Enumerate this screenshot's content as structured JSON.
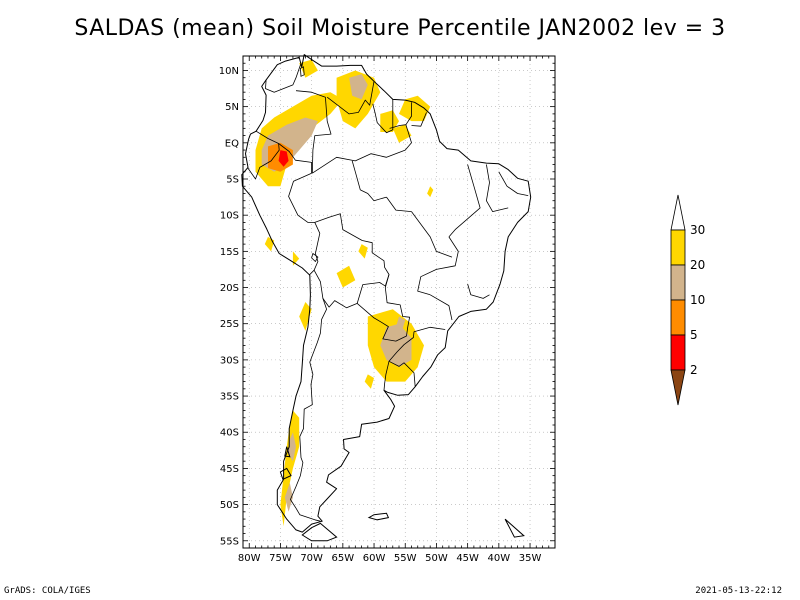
{
  "title": "SALDAS (mean) Soil Moisture Percentile JAN2002 lev = 3",
  "map": {
    "lat_range": [
      -56,
      12
    ],
    "lon_range": [
      -81,
      -31
    ],
    "lat_ticks": [
      {
        "lat": 10,
        "label": "10N"
      },
      {
        "lat": 5,
        "label": "5N"
      },
      {
        "lat": 0,
        "label": "EQ"
      },
      {
        "lat": -5,
        "label": "5S"
      },
      {
        "lat": -10,
        "label": "10S"
      },
      {
        "lat": -15,
        "label": "15S"
      },
      {
        "lat": -20,
        "label": "20S"
      },
      {
        "lat": -25,
        "label": "25S"
      },
      {
        "lat": -30,
        "label": "30S"
      },
      {
        "lat": -35,
        "label": "35S"
      },
      {
        "lat": -40,
        "label": "40S"
      },
      {
        "lat": -45,
        "label": "45S"
      },
      {
        "lat": -50,
        "label": "50S"
      },
      {
        "lat": -55,
        "label": "55S"
      }
    ],
    "lon_ticks": [
      {
        "lon": -80,
        "label": "80W"
      },
      {
        "lon": -75,
        "label": "75W"
      },
      {
        "lon": -70,
        "label": "70W"
      },
      {
        "lon": -65,
        "label": "65W"
      },
      {
        "lon": -60,
        "label": "60W"
      },
      {
        "lon": -55,
        "label": "55W"
      },
      {
        "lon": -50,
        "label": "50W"
      },
      {
        "lon": -45,
        "label": "45W"
      },
      {
        "lon": -40,
        "label": "40W"
      },
      {
        "lon": -35,
        "label": "35W"
      }
    ]
  },
  "legend": {
    "levels": [
      {
        "label": "2",
        "color": "#ff0000"
      },
      {
        "label": "5",
        "color": "#ff8c00"
      },
      {
        "label": "10",
        "color": "#d2b48c"
      },
      {
        "label": "20",
        "color": "#ffd700"
      },
      {
        "label": "30",
        "color": "#ffffff"
      }
    ],
    "below_color": "#8b4513",
    "above_color": "#ffffff"
  },
  "colors": {
    "yellow": "#ffd700",
    "tan": "#d2b48c",
    "orange": "#ff8c00",
    "red": "#ff0000"
  },
  "footer": {
    "left": "GrADS: COLA/IGES",
    "right": "2021-05-13-22:12"
  }
}
